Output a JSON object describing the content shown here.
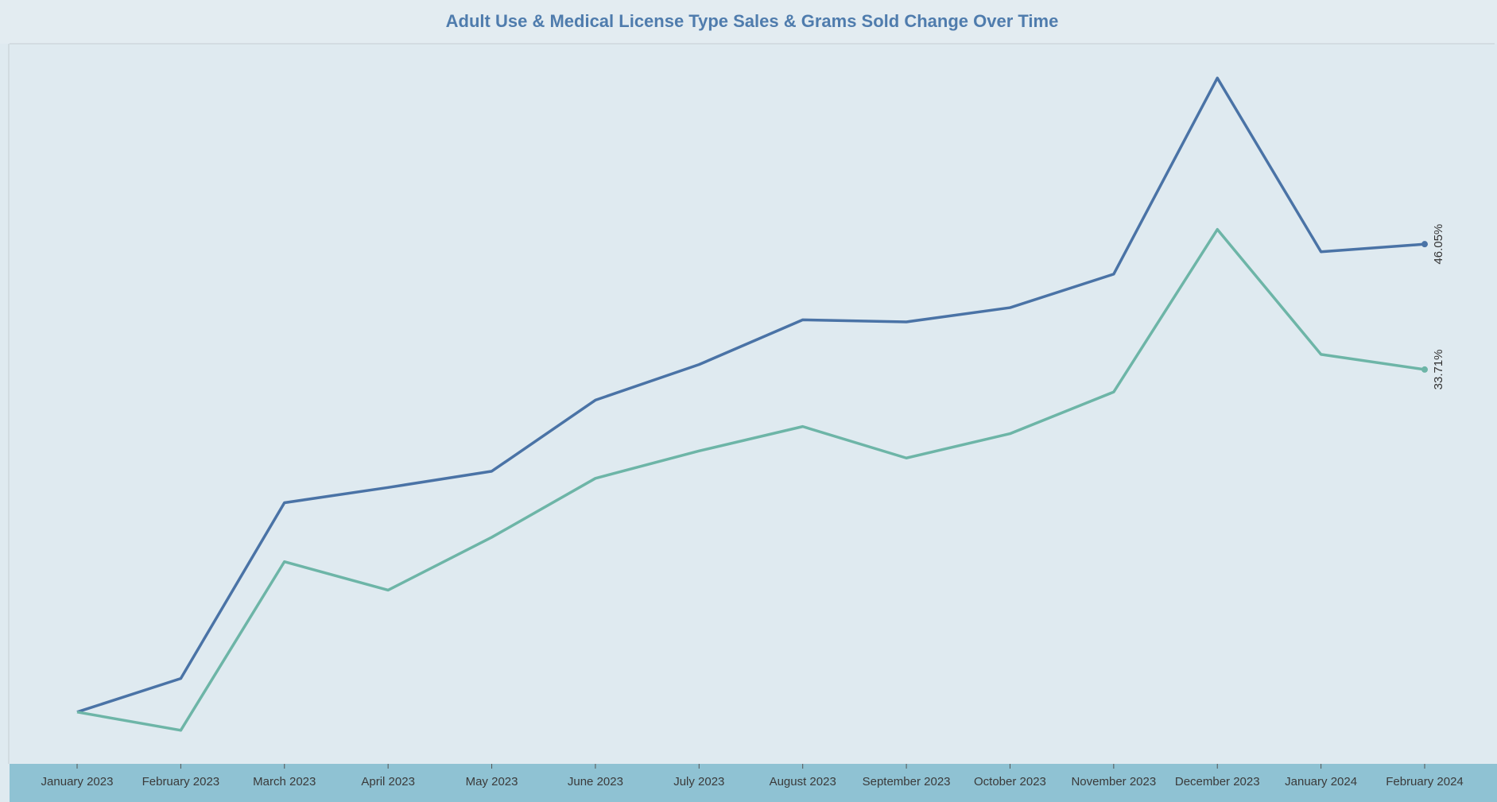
{
  "chart_data": {
    "type": "line",
    "title": "Adult Use & Medical License Type  Sales & Grams Sold Change Over Time",
    "categories": [
      "January 2023",
      "February 2023",
      "March 2023",
      "April 2023",
      "May 2023",
      "June 2023",
      "July 2023",
      "August 2023",
      "September 2023",
      "October 2023",
      "November 2023",
      "December 2023",
      "January 2024",
      "February 2024"
    ],
    "series": [
      {
        "color": "#4a73a6",
        "values": [
          0,
          3.3,
          20.6,
          22.1,
          23.7,
          30.7,
          34.2,
          38.6,
          38.4,
          39.8,
          43.1,
          62.4,
          45.3,
          46.05
        ],
        "value_labels": [
          null,
          null,
          null,
          null,
          null,
          null,
          null,
          null,
          null,
          null,
          null,
          null,
          null,
          "46.05%"
        ]
      },
      {
        "color": "#6db5a7",
        "values": [
          0,
          -1.8,
          14.8,
          12.0,
          17.2,
          23.0,
          25.7,
          28.1,
          25.0,
          27.4,
          31.5,
          47.5,
          35.2,
          33.71
        ],
        "value_labels": [
          null,
          null,
          null,
          null,
          null,
          null,
          null,
          null,
          null,
          null,
          null,
          null,
          null,
          "33.71%"
        ]
      }
    ],
    "ylim": [
      -5.1,
      65.7
    ]
  }
}
